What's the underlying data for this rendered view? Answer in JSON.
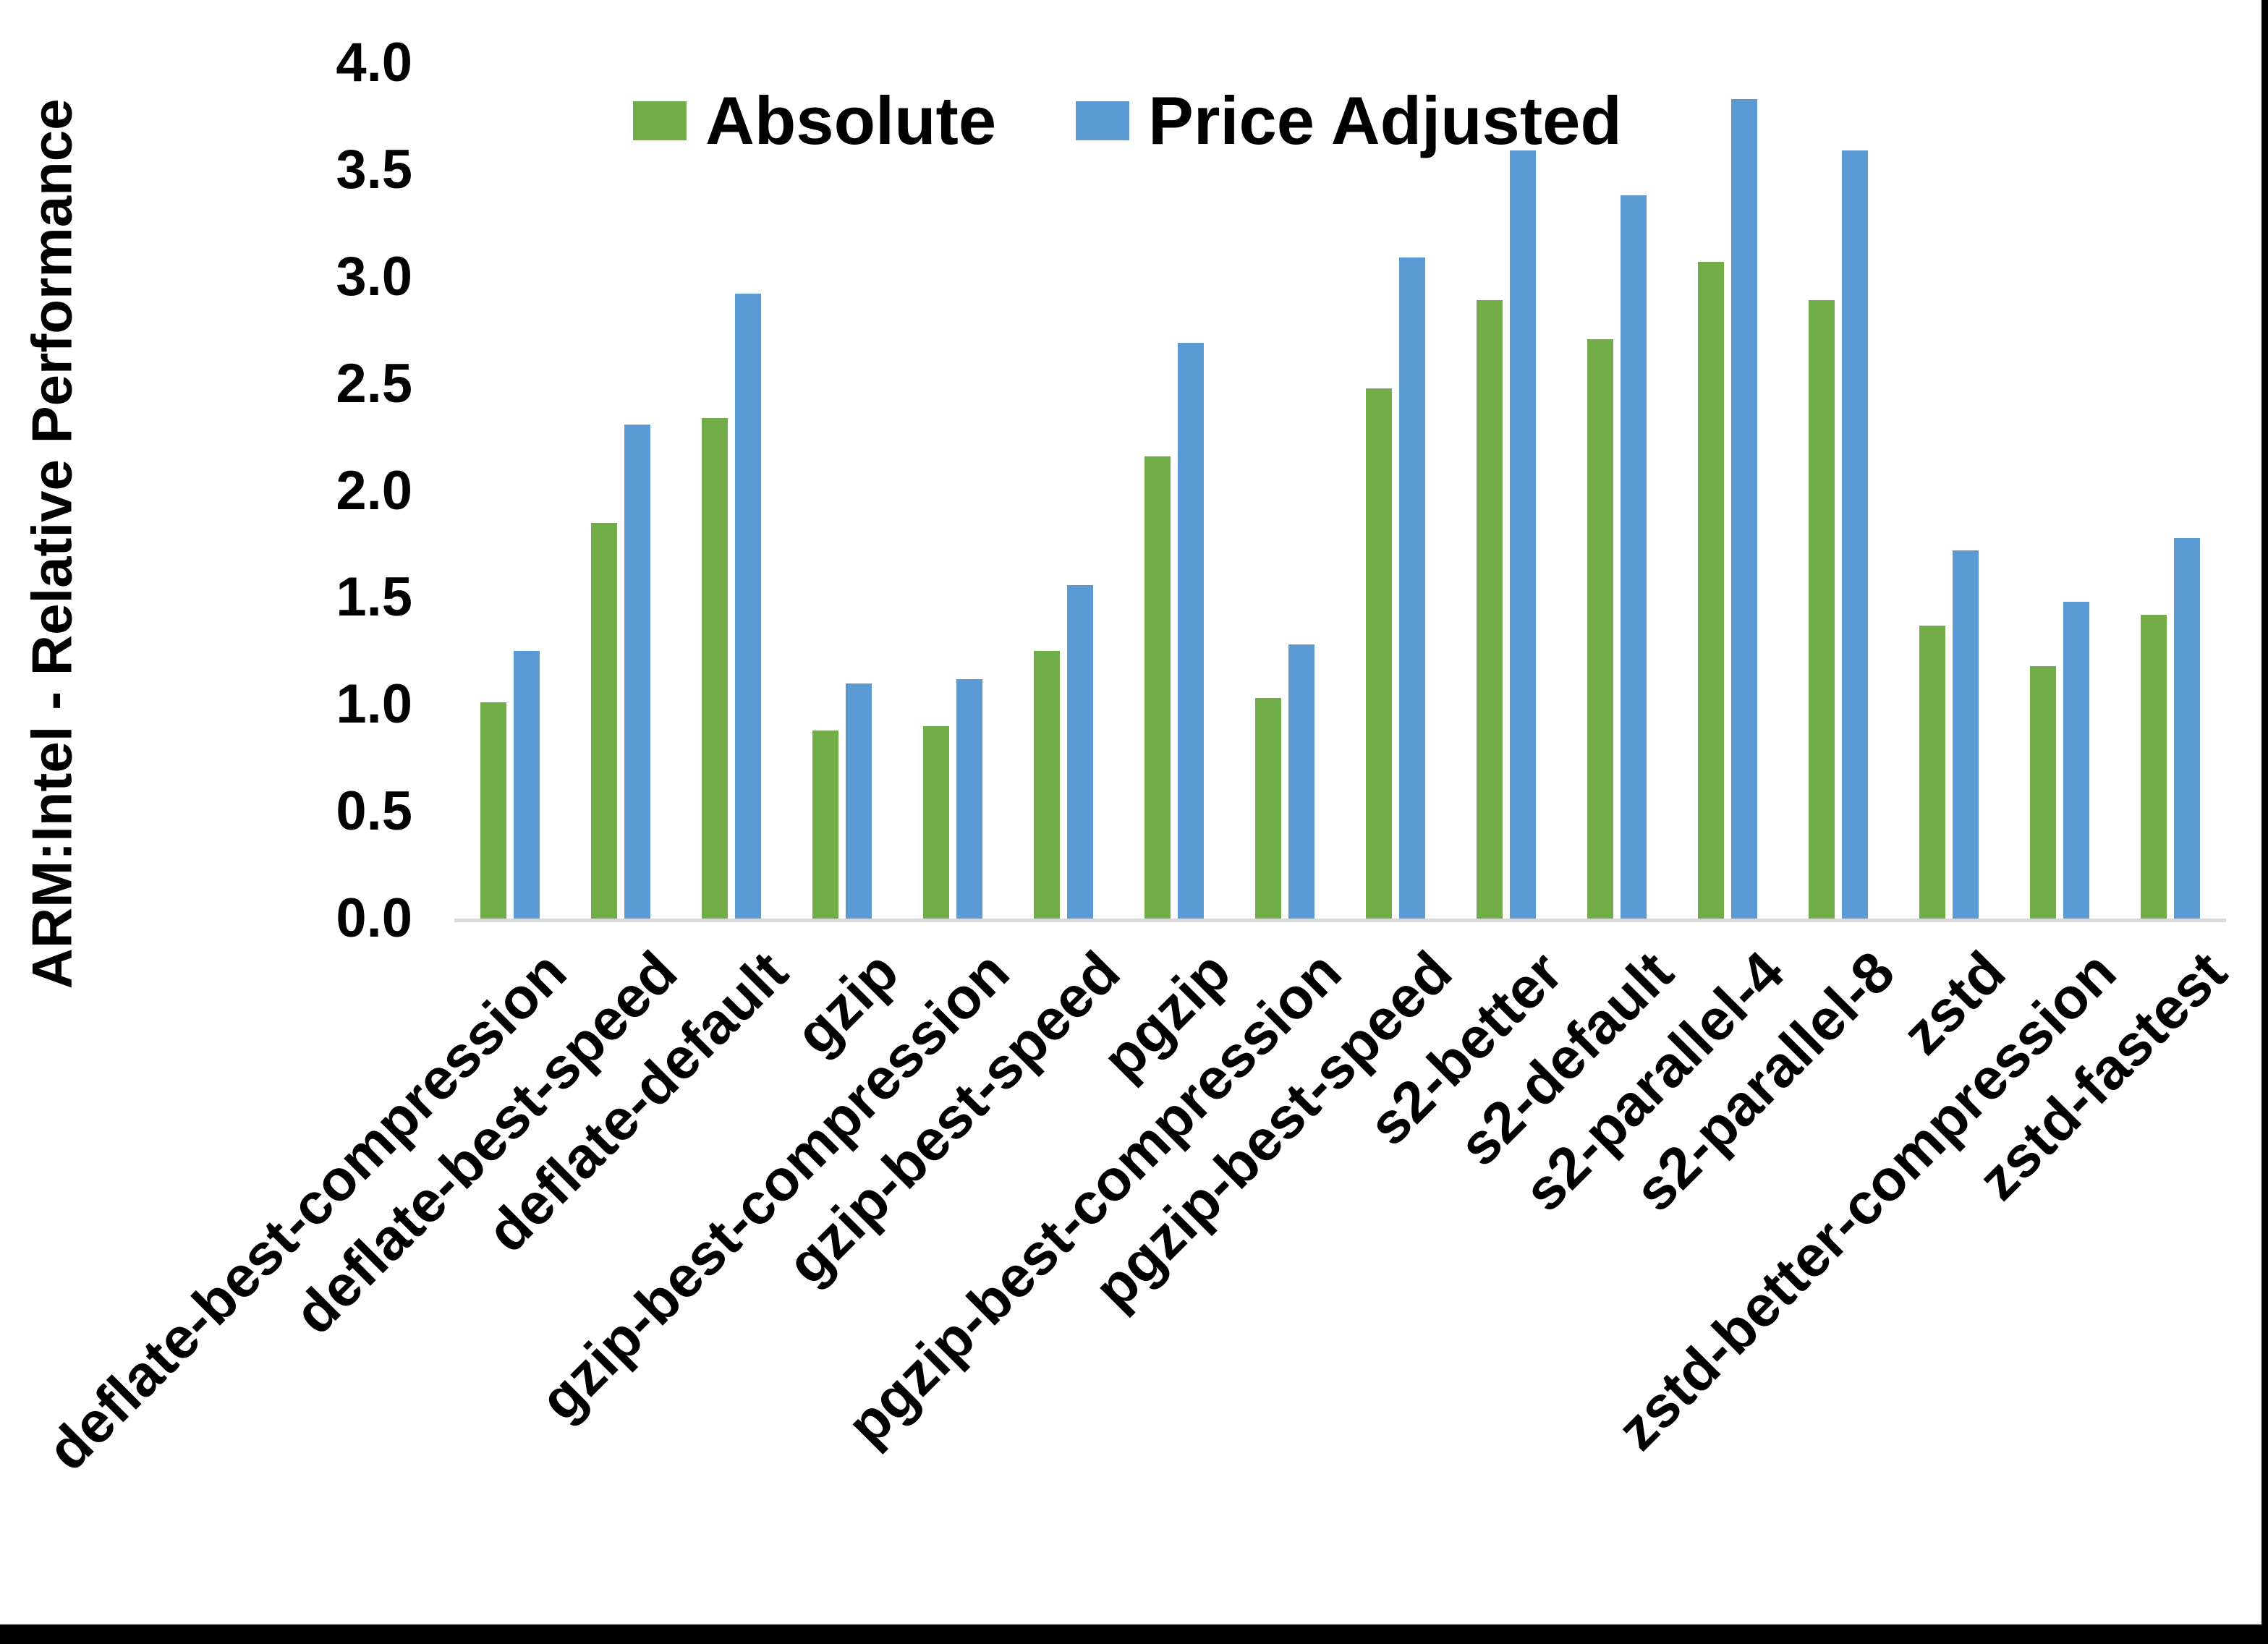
{
  "chart_data": {
    "type": "bar",
    "title": "",
    "xlabel": "",
    "ylabel": "ARM:Intel - Relative Performance",
    "ylim": [
      0.0,
      4.0
    ],
    "ytick_step": 0.5,
    "ytick_labels": [
      "4.0",
      "3.5",
      "3.0",
      "2.5",
      "2.0",
      "1.5",
      "1.0",
      "0.5",
      "0.0"
    ],
    "grid": false,
    "legend_position": "top-center",
    "categories": [
      "deflate-best-compression",
      "deflate-best-speed",
      "deflate-default",
      "gzip",
      "gzip-best-compression",
      "gzip-best-speed",
      "pgzip",
      "pgzip-best-compression",
      "pgzip-best-speed",
      "s2-better",
      "s2-default",
      "s2-parallel-4",
      "s2-parallel-8",
      "zstd",
      "zstd-better-compression",
      "zstd-fastest"
    ],
    "series": [
      {
        "name": "Absolute",
        "color": "#70AD47",
        "values": [
          1.01,
          1.85,
          2.34,
          0.88,
          0.9,
          1.25,
          2.16,
          1.03,
          2.48,
          2.89,
          2.71,
          3.07,
          2.89,
          1.37,
          1.18,
          1.42
        ]
      },
      {
        "name": "Price Adjusted",
        "color": "#5B9BD5",
        "values": [
          1.25,
          2.31,
          2.92,
          1.1,
          1.12,
          1.56,
          2.69,
          1.28,
          3.09,
          3.59,
          3.38,
          3.83,
          3.59,
          1.72,
          1.48,
          1.78
        ]
      }
    ]
  },
  "colors": {
    "axis_baseline": "#D9D9D9",
    "text": "#000000",
    "frame": "#000000",
    "background": "#FFFFFF"
  }
}
